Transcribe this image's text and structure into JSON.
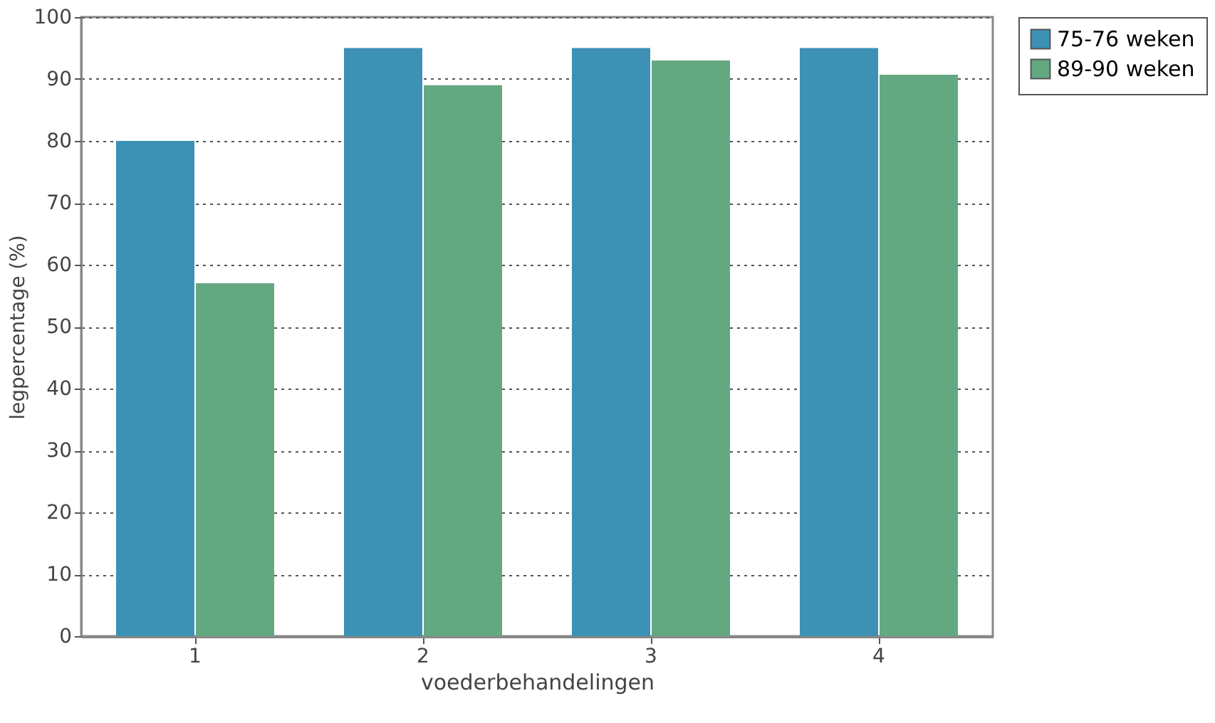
{
  "chart_data": {
    "type": "bar",
    "xlabel": "voederbehandelingen",
    "ylabel": "legpercentage (%)",
    "categories": [
      "1",
      "2",
      "3",
      "4"
    ],
    "series": [
      {
        "name": "75-76 weken",
        "color": "#3c91b4",
        "values": [
          80,
          95,
          95,
          95
        ]
      },
      {
        "name": "89-90 weken",
        "color": "#64a882",
        "values": [
          57,
          89,
          93,
          90.7
        ]
      }
    ],
    "ylim": [
      0,
      100
    ],
    "yticks": [
      0,
      10,
      20,
      30,
      40,
      50,
      60,
      70,
      80,
      90,
      100
    ],
    "grid": "y",
    "legend": "right"
  }
}
